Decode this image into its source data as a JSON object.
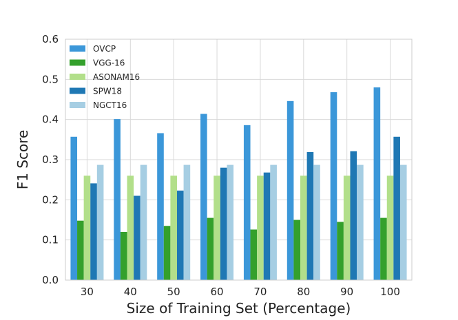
{
  "chart_data": {
    "type": "bar",
    "title": "",
    "xlabel": "Size of Training Set (Percentage)",
    "ylabel": "F1 Score",
    "categories": [
      "30",
      "40",
      "50",
      "60",
      "70",
      "80",
      "90",
      "100"
    ],
    "ylim": [
      0,
      0.6
    ],
    "yticks": [
      "0.0",
      "0.1",
      "0.2",
      "0.3",
      "0.4",
      "0.5",
      "0.6"
    ],
    "grid": true,
    "legend_position": "top-left",
    "series": [
      {
        "name": "OVCP",
        "color": "#3b97d9",
        "values": [
          0.357,
          0.401,
          0.366,
          0.414,
          0.386,
          0.446,
          0.468,
          0.48
        ]
      },
      {
        "name": "VGG-16",
        "color": "#34a02c",
        "values": [
          0.148,
          0.12,
          0.135,
          0.155,
          0.126,
          0.15,
          0.145,
          0.155
        ]
      },
      {
        "name": "ASONAM16",
        "color": "#b2df8a",
        "values": [
          0.26,
          0.26,
          0.26,
          0.26,
          0.26,
          0.26,
          0.26,
          0.26
        ]
      },
      {
        "name": "SPW18",
        "color": "#1f78b4",
        "values": [
          0.241,
          0.21,
          0.223,
          0.28,
          0.268,
          0.319,
          0.321,
          0.357
        ]
      },
      {
        "name": "NGCT16",
        "color": "#a6cee3",
        "values": [
          0.287,
          0.287,
          0.287,
          0.287,
          0.287,
          0.287,
          0.287,
          0.287
        ]
      }
    ]
  }
}
